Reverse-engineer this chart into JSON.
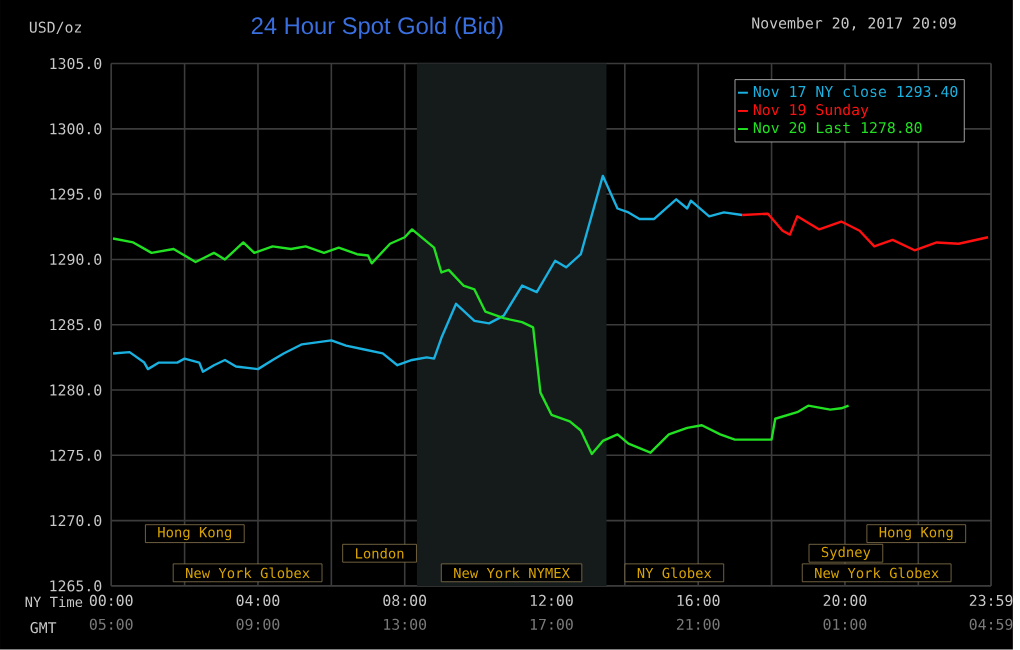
{
  "chart_data": {
    "type": "line",
    "title": "24 Hour Spot Gold (Bid)",
    "subtitle": "November 20, 2017 20:09",
    "ylabel": "USD/oz",
    "xlabel": "NY Time",
    "x2label": "GMT",
    "xlim": [
      0,
      23.983
    ],
    "x2lim": [
      "2017-11-20T05:00",
      "2017-11-21T04:59"
    ],
    "ylim": [
      1265,
      1305
    ],
    "xticks": [
      {
        "value": 0,
        "label": "00:00"
      },
      {
        "value": 2,
        "label": null
      },
      {
        "value": 4,
        "label": "04:00"
      },
      {
        "value": 6,
        "label": null
      },
      {
        "value": 8,
        "label": "08:00"
      },
      {
        "value": 10,
        "label": null
      },
      {
        "value": 12,
        "label": "12:00"
      },
      {
        "value": 14,
        "label": null
      },
      {
        "value": 16,
        "label": "16:00"
      },
      {
        "value": 18,
        "label": null
      },
      {
        "value": 20,
        "label": "20:00"
      },
      {
        "value": 22,
        "label": null
      },
      {
        "value": 23.983,
        "label": "23:59"
      }
    ],
    "x2ticks": [
      {
        "value": "2017-11-20T05:00",
        "label": "05:00"
      },
      {
        "value": "2017-11-20T09:00",
        "label": "09:00"
      },
      {
        "value": "2017-11-20T13:00",
        "label": "13:00"
      },
      {
        "value": "2017-11-20T17:00",
        "label": "17:00"
      },
      {
        "value": "2017-11-20T21:00",
        "label": "21:00"
      },
      {
        "value": "2017-11-21T01:00",
        "label": "01:00"
      },
      {
        "value": "2017-11-21T04:59",
        "label": "04:59"
      }
    ],
    "yticks": [
      {
        "value": 1265,
        "label": "1265.0"
      },
      {
        "value": 1270,
        "label": "1270.0"
      },
      {
        "value": 1275,
        "label": "1275.0"
      },
      {
        "value": 1280,
        "label": "1280.0"
      },
      {
        "value": 1285,
        "label": "1285.0"
      },
      {
        "value": 1290,
        "label": "1290.0"
      },
      {
        "value": 1295,
        "label": "1295.0"
      },
      {
        "value": 1300,
        "label": "1300.0"
      },
      {
        "value": 1305,
        "label": "1305.0"
      }
    ],
    "grid": true,
    "legend": "top right",
    "bands": [
      {
        "axis": "x",
        "from": 8.333,
        "to": 13.5,
        "color": "#151b1b"
      }
    ],
    "annotations": [
      "Hong Kong",
      "Hong Kong",
      "London",
      "Sydney",
      "New York Globex",
      "New York NYMEX",
      "NY Globex",
      "New York Globex"
    ],
    "series": [
      {
        "name": "Nov 17 NY close 1293.40",
        "color": "#1ab0e0",
        "x": [
          0.05,
          0.5,
          0.9,
          1.0,
          1.3,
          1.8,
          2.0,
          2.4,
          2.5,
          2.8,
          3.1,
          3.4,
          4.0,
          4.4,
          4.7,
          5.2,
          6.0,
          6.4,
          6.9,
          7.4,
          7.8,
          8.2,
          8.6,
          8.8,
          9.0,
          9.4,
          9.9,
          10.3,
          10.7,
          11.2,
          11.6,
          12.1,
          12.4,
          12.8,
          13.4,
          13.8,
          14.1,
          14.4,
          14.8,
          15.4,
          15.7,
          15.8,
          16.3,
          16.7,
          17.2
        ],
        "values": [
          1282.8,
          1282.9,
          1282.1,
          1281.6,
          1282.1,
          1282.1,
          1282.4,
          1282.1,
          1281.4,
          1281.9,
          1282.3,
          1281.8,
          1281.6,
          1282.3,
          1282.8,
          1283.5,
          1283.8,
          1283.4,
          1283.1,
          1282.8,
          1281.9,
          1282.3,
          1282.5,
          1282.4,
          1284.0,
          1286.6,
          1285.3,
          1285.1,
          1285.7,
          1288.0,
          1287.5,
          1289.9,
          1289.4,
          1290.4,
          1296.4,
          1293.9,
          1293.6,
          1293.1,
          1293.1,
          1294.6,
          1293.9,
          1294.5,
          1293.3,
          1293.6,
          1293.4
        ]
      },
      {
        "name": "Nov 19 Sunday",
        "color": "#ff1010",
        "x": [
          17.2,
          17.9,
          18.3,
          18.5,
          18.7,
          19.3,
          19.9,
          20.4,
          20.8,
          21.3,
          21.9,
          22.5,
          23.1,
          23.9
        ],
        "values": [
          1293.4,
          1293.5,
          1292.2,
          1291.9,
          1293.3,
          1292.3,
          1292.9,
          1292.2,
          1291.0,
          1291.5,
          1290.7,
          1291.3,
          1291.2,
          1291.7
        ]
      },
      {
        "name": "Nov 20 Last 1278.80",
        "color": "#22e022",
        "x": [
          0.05,
          0.6,
          1.1,
          1.7,
          2.3,
          2.8,
          3.1,
          3.6,
          3.9,
          4.4,
          4.9,
          5.3,
          5.8,
          6.2,
          6.7,
          7.0,
          7.1,
          7.6,
          8.0,
          8.2,
          8.8,
          9.0,
          9.2,
          9.6,
          9.9,
          10.2,
          10.7,
          11.2,
          11.5,
          11.7,
          12.0,
          12.5,
          12.8,
          13.1,
          13.4,
          13.8,
          14.1,
          14.7,
          15.2,
          15.7,
          16.1,
          16.6,
          17.0,
          18.0,
          18.1,
          18.7,
          19.0,
          19.6,
          19.9,
          20.1
        ],
        "values": [
          1291.6,
          1291.3,
          1290.5,
          1290.8,
          1289.8,
          1290.5,
          1290.0,
          1291.3,
          1290.5,
          1291.0,
          1290.8,
          1291.0,
          1290.5,
          1290.9,
          1290.4,
          1290.3,
          1289.7,
          1291.2,
          1291.7,
          1292.3,
          1290.9,
          1289.0,
          1289.2,
          1288.0,
          1287.7,
          1286.0,
          1285.5,
          1285.2,
          1284.8,
          1279.8,
          1278.1,
          1277.6,
          1276.9,
          1275.1,
          1276.1,
          1276.6,
          1275.9,
          1275.2,
          1276.6,
          1277.1,
          1277.3,
          1276.6,
          1276.2,
          1276.2,
          1277.8,
          1278.3,
          1278.8,
          1278.5,
          1278.6,
          1278.8
        ]
      }
    ]
  }
}
